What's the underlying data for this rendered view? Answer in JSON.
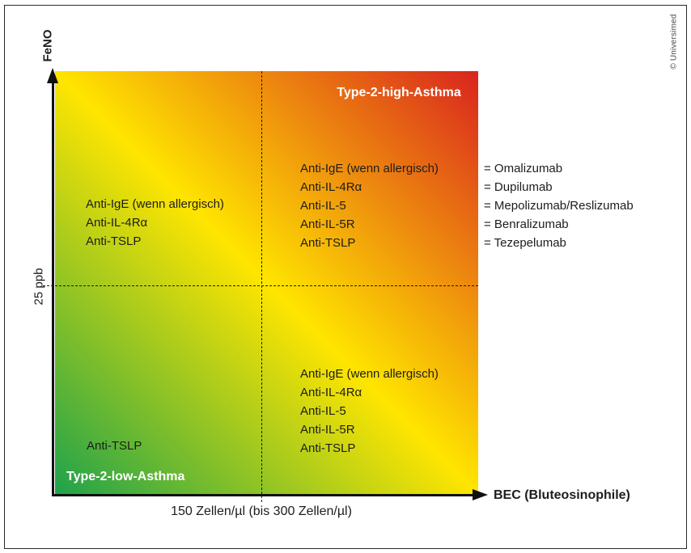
{
  "credit": "© Universimed",
  "axes": {
    "y": {
      "name": "FeNO",
      "threshold": "25 ppb"
    },
    "x": {
      "name": "BEC (Bluteosinophile)",
      "threshold": "150 Zellen/µl (bis 300 Zellen/µl)"
    }
  },
  "phenotypes": {
    "high": "Type-2-high-Asthma",
    "low": "Type-2-low-Asthma"
  },
  "quadrants": {
    "upper_left": {
      "items": [
        "Anti-IgE (wenn allergisch)",
        "Anti-IL-4Rα",
        "Anti-TSLP"
      ]
    },
    "upper_right": {
      "items": [
        "Anti-IgE (wenn allergisch)",
        "Anti-IL-4Rα",
        "Anti-IL-5",
        "Anti-IL-5R",
        "Anti-TSLP"
      ]
    },
    "lower_right": {
      "items": [
        "Anti-IgE (wenn allergisch)",
        "Anti-IL-4Rα",
        "Anti-IL-5",
        "Anti-IL-5R",
        "Anti-TSLP"
      ]
    },
    "lower_left": {
      "items": [
        "Anti-TSLP"
      ]
    }
  },
  "legend": {
    "items": [
      "= Omalizumab",
      "= Dupilumab",
      "= Mepolizumab/Reslizumab",
      "= Benralizumab",
      "= Tezepelumab"
    ]
  },
  "colors": {
    "gradient_green": "#1FA24B",
    "gradient_yellow": "#FFE500",
    "gradient_red": "#D9241E",
    "text": "#1d1d1b",
    "phenotype_text": "#ffffff"
  }
}
